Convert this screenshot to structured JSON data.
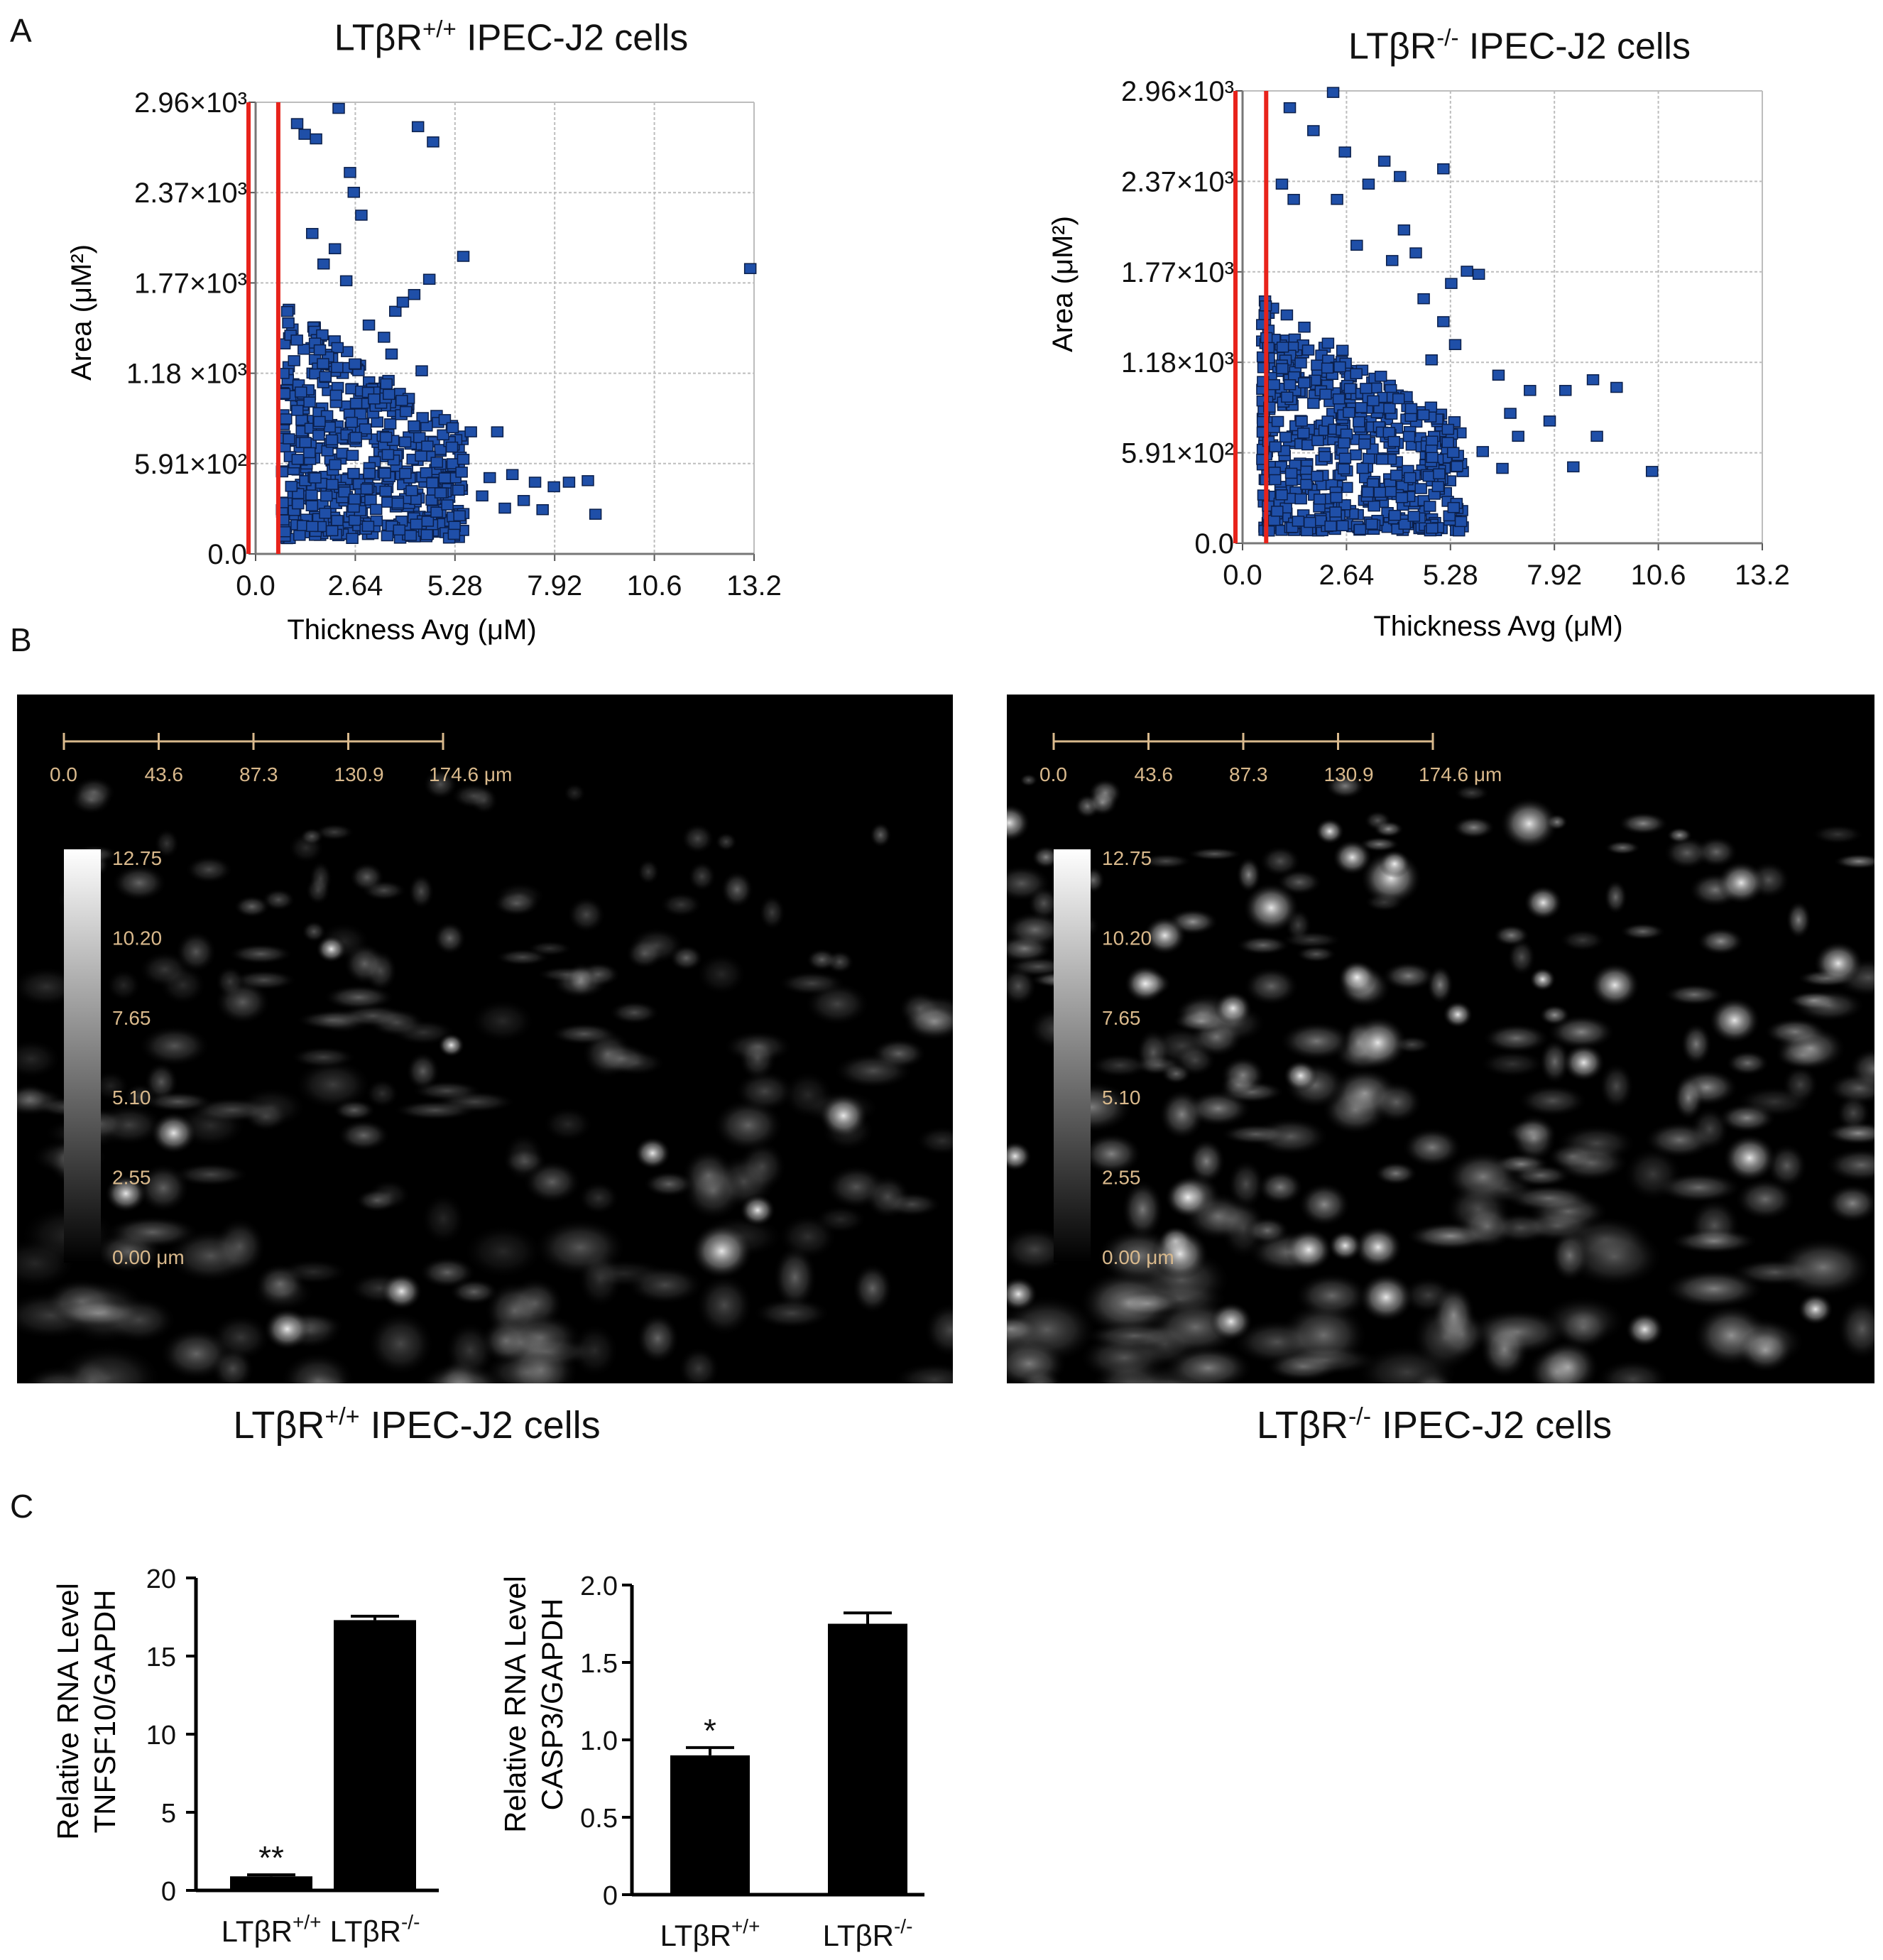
{
  "panels": {
    "a": "A",
    "b": "B",
    "c": "C"
  },
  "chart_data": [
    {
      "type": "scatter",
      "title_main": "LTβR",
      "title_sup": "+/+",
      "title_rest": " IPEC-J2 cells",
      "xlabel": "Thickness Avg (μM)",
      "ylabel": "Area (μM²)",
      "xticks": [
        "0.0",
        "2.64",
        "5.28",
        "7.92",
        "10.6",
        "13.2"
      ],
      "yticks": [
        "0.0",
        "5.91×10²",
        "1.18 ×10³",
        "1.77×10³",
        "2.37×10³",
        "2.96×10³"
      ],
      "xlim": [
        0,
        13.2
      ],
      "ylim": [
        0,
        2960
      ],
      "gates_x": [
        0.0,
        0.6
      ],
      "cluster": {
        "x_min": 0.7,
        "x_max": 5.5,
        "y_min": 100,
        "y_max": 1650,
        "count": 520
      },
      "points": [
        [
          1.1,
          2820
        ],
        [
          1.3,
          2750
        ],
        [
          1.6,
          2720
        ],
        [
          2.2,
          2920
        ],
        [
          2.5,
          2500
        ],
        [
          4.3,
          2800
        ],
        [
          4.7,
          2700
        ],
        [
          2.6,
          2370
        ],
        [
          1.5,
          2100
        ],
        [
          2.1,
          2000
        ],
        [
          2.8,
          2220
        ],
        [
          5.5,
          1950
        ],
        [
          13.1,
          1870
        ],
        [
          1.8,
          1900
        ],
        [
          2.4,
          1790
        ],
        [
          4.2,
          1700
        ],
        [
          4.6,
          1800
        ],
        [
          3.7,
          1590
        ],
        [
          3.4,
          1420
        ],
        [
          3.6,
          1310
        ],
        [
          4.4,
          1200
        ],
        [
          5.7,
          800
        ],
        [
          6.4,
          800
        ],
        [
          6.8,
          520
        ],
        [
          7.4,
          470
        ],
        [
          7.9,
          440
        ],
        [
          8.3,
          470
        ],
        [
          8.8,
          480
        ],
        [
          9.0,
          260
        ],
        [
          6.0,
          380
        ],
        [
          6.6,
          300
        ],
        [
          7.1,
          350
        ],
        [
          7.6,
          290
        ],
        [
          4.8,
          600
        ],
        [
          5.2,
          700
        ],
        [
          5.5,
          620
        ],
        [
          4.9,
          400
        ],
        [
          5.4,
          250
        ],
        [
          6.2,
          500
        ],
        [
          3.0,
          1500
        ],
        [
          3.9,
          1650
        ]
      ]
    },
    {
      "type": "scatter",
      "title_main": "LTβR",
      "title_sup": "-/-",
      "title_rest": " IPEC-J2 cells",
      "xlabel": "Thickness Avg (μM)",
      "ylabel": "Area (μM²)",
      "xticks": [
        "0.0",
        "2.64",
        "5.28",
        "7.92",
        "10.6",
        "13.2"
      ],
      "yticks": [
        "0.0",
        "5.91×10²",
        "1.18×10³",
        "1.77×10³",
        "2.37×10³",
        "2.96×10³"
      ],
      "xlim": [
        0,
        13.2
      ],
      "ylim": [
        0,
        2960
      ],
      "gates_x": [
        0.0,
        0.6
      ],
      "cluster": {
        "x_min": 0.5,
        "x_max": 5.6,
        "y_min": 80,
        "y_max": 1600,
        "count": 560
      },
      "points": [
        [
          1.2,
          2850
        ],
        [
          1.8,
          2700
        ],
        [
          2.3,
          2950
        ],
        [
          3.2,
          2350
        ],
        [
          3.6,
          2500
        ],
        [
          4.0,
          2400
        ],
        [
          2.6,
          2560
        ],
        [
          5.1,
          2450
        ],
        [
          1.0,
          2350
        ],
        [
          1.3,
          2250
        ],
        [
          4.1,
          2050
        ],
        [
          4.4,
          1900
        ],
        [
          5.3,
          1700
        ],
        [
          5.7,
          1780
        ],
        [
          6.0,
          1760
        ],
        [
          4.6,
          1600
        ],
        [
          5.1,
          1450
        ],
        [
          4.8,
          1200
        ],
        [
          5.4,
          1300
        ],
        [
          6.5,
          1100
        ],
        [
          6.8,
          850
        ],
        [
          7.3,
          1000
        ],
        [
          7.8,
          800
        ],
        [
          8.2,
          1000
        ],
        [
          8.9,
          1070
        ],
        [
          9.5,
          1020
        ],
        [
          9.0,
          700
        ],
        [
          10.4,
          470
        ],
        [
          8.4,
          500
        ],
        [
          6.1,
          600
        ],
        [
          6.6,
          490
        ],
        [
          7.0,
          700
        ],
        [
          3.8,
          1850
        ],
        [
          2.9,
          1950
        ],
        [
          2.4,
          2250
        ]
      ]
    },
    {
      "type": "bar",
      "ylabel_line1": "Relative RNA Level",
      "ylabel_line2": "TNFSF10/GAPDH",
      "categories": [
        {
          "main": "LTβR",
          "sup": "+/+"
        },
        {
          "main": "LTβR",
          "sup": "-/-"
        }
      ],
      "values": [
        0.9,
        17.3
      ],
      "errors": [
        0.1,
        0.25
      ],
      "yticks": [
        "0",
        "5",
        "10",
        "15",
        "20"
      ],
      "ylim": [
        0,
        20
      ],
      "annotations": [
        "**",
        ""
      ]
    },
    {
      "type": "bar",
      "ylabel_line1": "Relative RNA Level",
      "ylabel_line2": "CASP3/GAPDH",
      "categories": [
        {
          "main": "LTβR",
          "sup": "+/+"
        },
        {
          "main": "LTβR",
          "sup": "-/-"
        }
      ],
      "values": [
        0.9,
        1.75
      ],
      "errors": [
        0.05,
        0.07
      ],
      "yticks": [
        "0",
        "0.5",
        "1.0",
        "1.5",
        "2.0"
      ],
      "ylim": [
        0,
        2.0
      ],
      "annotations": [
        "*",
        ""
      ]
    }
  ],
  "micrographs": [
    {
      "scale_ticks": [
        "0.0",
        "43.6",
        "87.3",
        "130.9",
        "174.6 μm"
      ],
      "colorbar_ticks": [
        "12.75",
        "10.20",
        "7.65",
        "5.10",
        "2.55",
        "0.00 μm"
      ],
      "caption_main": "LTβR",
      "caption_sup": "+/+",
      "caption_rest": " IPEC-J2 cells"
    },
    {
      "scale_ticks": [
        "0.0",
        "43.6",
        "87.3",
        "130.9",
        "174.6 μm"
      ],
      "colorbar_ticks": [
        "12.75",
        "10.20",
        "7.65",
        "5.10",
        "2.55",
        "0.00 μm"
      ],
      "caption_main": "LTβR",
      "caption_sup": "-/-",
      "caption_rest": " IPEC-J2 cells"
    }
  ]
}
